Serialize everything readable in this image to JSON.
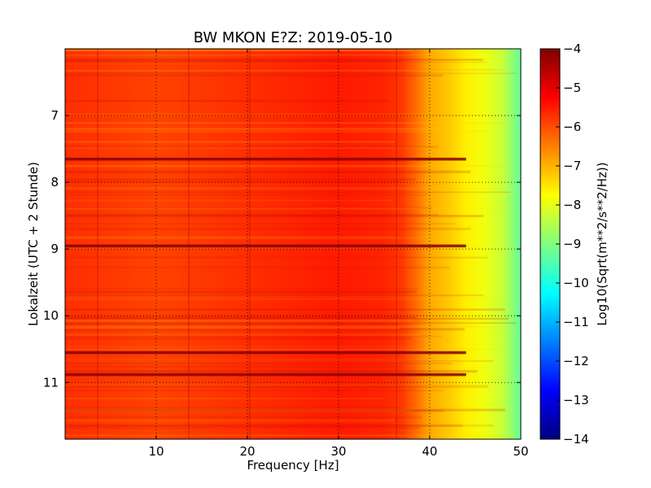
{
  "chart_data": {
    "type": "heatmap",
    "title": "BW MKON E?Z: 2019-05-10",
    "xlabel": "Frequency [Hz]",
    "ylabel": "Lokalzeit (UTC + 2 Stunde)",
    "xlim": [
      0,
      50
    ],
    "ylim": [
      6.0,
      11.85
    ],
    "y_inverted": true,
    "x_ticks": [
      10,
      20,
      30,
      40,
      50
    ],
    "x_tick_labels": [
      "10",
      "20",
      "30",
      "40",
      "50"
    ],
    "y_ticks": [
      7,
      8,
      9,
      10,
      11
    ],
    "y_tick_labels": [
      "7",
      "8",
      "9",
      "10",
      "11"
    ],
    "grid": true,
    "colormap": "jet",
    "colorbar": {
      "label": "Log10(Sqrt(m**2/s**2/Hz))",
      "min": -14,
      "max": -4,
      "ticks": [
        -4,
        -5,
        -6,
        -7,
        -8,
        -9,
        -10,
        -11,
        -12,
        -13,
        -14
      ],
      "tick_labels": [
        "−4",
        "−5",
        "−6",
        "−7",
        "−8",
        "−9",
        "−10",
        "−11",
        "−12",
        "−13",
        "−14"
      ]
    },
    "spectral_profile": {
      "frequency_hz": [
        0,
        10,
        20,
        30,
        35,
        37,
        38.5,
        40,
        42,
        44,
        46,
        48,
        50
      ],
      "log10_amplitude": [
        -5.7,
        -5.9,
        -5.7,
        -5.5,
        -5.6,
        -5.8,
        -6.3,
        -6.9,
        -7.2,
        -7.6,
        -7.9,
        -8.3,
        -9.3
      ]
    },
    "dark_bands_time": [
      7.65,
      8.95,
      10.55,
      10.88
    ]
  }
}
